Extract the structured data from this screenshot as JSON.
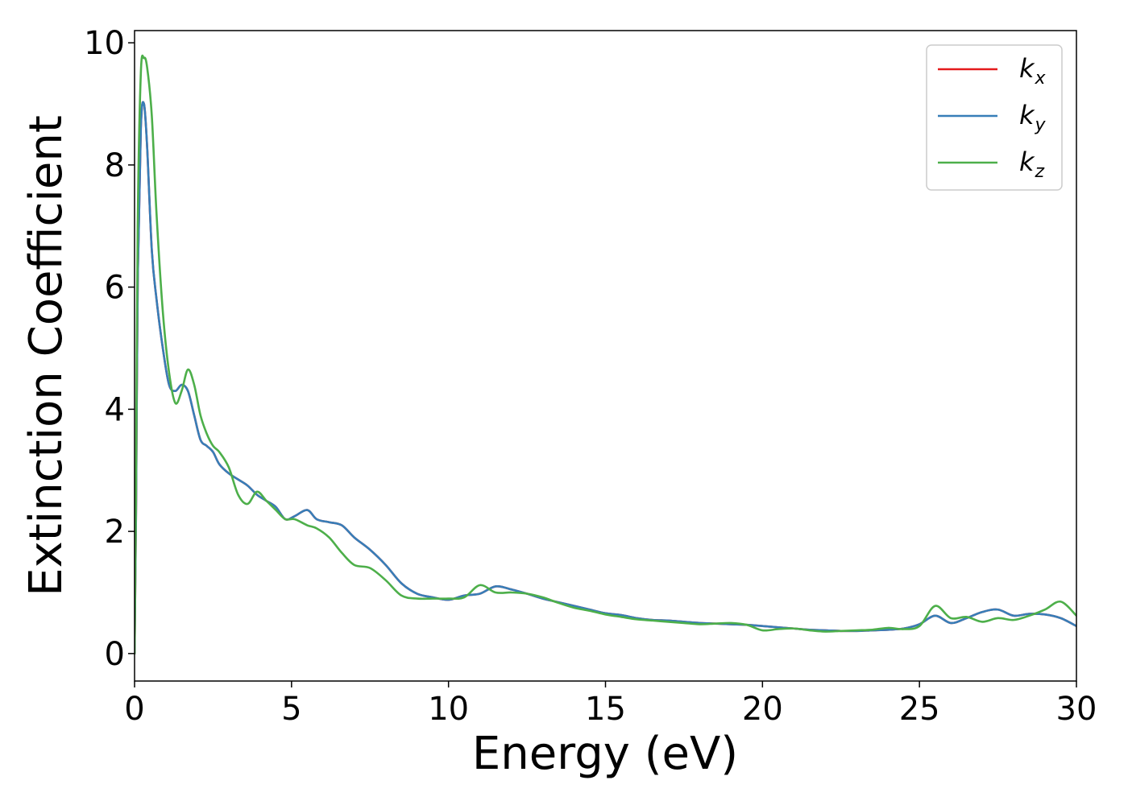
{
  "chart_data": {
    "type": "line",
    "title": "",
    "xlabel": "Energy (eV)",
    "ylabel": "Extinction Coefficient",
    "xlim": [
      0,
      30
    ],
    "ylim": [
      -0.45,
      10.2
    ],
    "xticks": [
      0,
      5,
      10,
      15,
      20,
      25,
      30
    ],
    "yticks": [
      0,
      2,
      4,
      6,
      8,
      10
    ],
    "grid": false,
    "legend_position": "top-right",
    "series": [
      {
        "name": "k_x",
        "label_base": "k",
        "label_sub": "x",
        "color": "#e41a1c",
        "x": [
          0,
          0.05,
          0.1,
          0.2,
          0.3,
          0.4,
          0.55,
          0.7,
          0.9,
          1.1,
          1.3,
          1.5,
          1.7,
          1.9,
          2.1,
          2.3,
          2.5,
          2.7,
          3.0,
          3.3,
          3.6,
          3.9,
          4.2,
          4.5,
          4.8,
          5.1,
          5.5,
          5.8,
          6.2,
          6.6,
          7.0,
          7.5,
          8.0,
          8.5,
          9.0,
          9.5,
          10.0,
          10.5,
          11.0,
          11.5,
          12.0,
          12.5,
          13.0,
          13.5,
          14.0,
          14.5,
          15.0,
          15.5,
          16.0,
          16.5,
          17.0,
          17.5,
          18.0,
          18.5,
          19.0,
          19.5,
          20.0,
          20.5,
          21.0,
          21.5,
          22.0,
          22.5,
          23.0,
          23.5,
          24.0,
          24.5,
          25.0,
          25.5,
          26.0,
          26.5,
          27.0,
          27.5,
          28.0,
          28.5,
          29.0,
          29.5,
          30.0
        ],
        "y": [
          0,
          2.5,
          6.0,
          8.6,
          9.0,
          8.3,
          6.6,
          5.8,
          5.0,
          4.4,
          4.3,
          4.4,
          4.3,
          3.9,
          3.5,
          3.4,
          3.3,
          3.1,
          2.95,
          2.85,
          2.75,
          2.6,
          2.5,
          2.4,
          2.2,
          2.25,
          2.35,
          2.2,
          2.15,
          2.1,
          1.9,
          1.7,
          1.45,
          1.15,
          0.98,
          0.92,
          0.88,
          0.95,
          0.98,
          1.1,
          1.05,
          0.98,
          0.9,
          0.84,
          0.78,
          0.72,
          0.66,
          0.63,
          0.58,
          0.55,
          0.54,
          0.52,
          0.5,
          0.49,
          0.48,
          0.47,
          0.45,
          0.43,
          0.41,
          0.39,
          0.38,
          0.37,
          0.37,
          0.38,
          0.39,
          0.41,
          0.48,
          0.62,
          0.5,
          0.58,
          0.68,
          0.72,
          0.62,
          0.65,
          0.64,
          0.58,
          0.45
        ]
      },
      {
        "name": "k_y",
        "label_base": "k",
        "label_sub": "y",
        "color": "#377eb8",
        "x": [
          0,
          0.05,
          0.1,
          0.2,
          0.3,
          0.4,
          0.55,
          0.7,
          0.9,
          1.1,
          1.3,
          1.5,
          1.7,
          1.9,
          2.1,
          2.3,
          2.5,
          2.7,
          3.0,
          3.3,
          3.6,
          3.9,
          4.2,
          4.5,
          4.8,
          5.1,
          5.5,
          5.8,
          6.2,
          6.6,
          7.0,
          7.5,
          8.0,
          8.5,
          9.0,
          9.5,
          10.0,
          10.5,
          11.0,
          11.5,
          12.0,
          12.5,
          13.0,
          13.5,
          14.0,
          14.5,
          15.0,
          15.5,
          16.0,
          16.5,
          17.0,
          17.5,
          18.0,
          18.5,
          19.0,
          19.5,
          20.0,
          20.5,
          21.0,
          21.5,
          22.0,
          22.5,
          23.0,
          23.5,
          24.0,
          24.5,
          25.0,
          25.5,
          26.0,
          26.5,
          27.0,
          27.5,
          28.0,
          28.5,
          29.0,
          29.5,
          30.0
        ],
        "y": [
          0,
          2.5,
          6.0,
          8.6,
          9.0,
          8.3,
          6.6,
          5.8,
          5.0,
          4.4,
          4.3,
          4.4,
          4.3,
          3.9,
          3.5,
          3.4,
          3.3,
          3.1,
          2.95,
          2.85,
          2.75,
          2.6,
          2.5,
          2.4,
          2.2,
          2.25,
          2.35,
          2.2,
          2.15,
          2.1,
          1.9,
          1.7,
          1.45,
          1.15,
          0.98,
          0.92,
          0.88,
          0.95,
          0.98,
          1.1,
          1.05,
          0.98,
          0.9,
          0.84,
          0.78,
          0.72,
          0.66,
          0.63,
          0.58,
          0.55,
          0.54,
          0.52,
          0.5,
          0.49,
          0.48,
          0.47,
          0.45,
          0.43,
          0.41,
          0.39,
          0.38,
          0.37,
          0.37,
          0.38,
          0.39,
          0.41,
          0.48,
          0.62,
          0.5,
          0.58,
          0.68,
          0.72,
          0.62,
          0.65,
          0.64,
          0.58,
          0.45
        ]
      },
      {
        "name": "k_z",
        "label_base": "k",
        "label_sub": "z",
        "color": "#4daf4a",
        "x": [
          0,
          0.05,
          0.1,
          0.2,
          0.3,
          0.4,
          0.55,
          0.7,
          0.9,
          1.1,
          1.3,
          1.5,
          1.7,
          1.9,
          2.1,
          2.3,
          2.5,
          2.7,
          3.0,
          3.3,
          3.6,
          3.9,
          4.2,
          4.5,
          4.8,
          5.1,
          5.5,
          5.8,
          6.2,
          6.6,
          7.0,
          7.5,
          8.0,
          8.5,
          9.0,
          9.5,
          10.0,
          10.5,
          11.0,
          11.5,
          12.0,
          12.5,
          13.0,
          13.5,
          14.0,
          14.5,
          15.0,
          15.5,
          16.0,
          16.5,
          17.0,
          17.5,
          18.0,
          18.5,
          19.0,
          19.5,
          20.0,
          20.5,
          21.0,
          21.5,
          22.0,
          22.5,
          23.0,
          23.5,
          24.0,
          24.5,
          25.0,
          25.5,
          26.0,
          26.5,
          27.0,
          27.5,
          28.0,
          28.5,
          29.0,
          29.5,
          30.0
        ],
        "y": [
          0,
          3.0,
          7.0,
          9.5,
          9.75,
          9.6,
          8.8,
          7.2,
          5.6,
          4.6,
          4.1,
          4.3,
          4.65,
          4.4,
          3.9,
          3.6,
          3.4,
          3.3,
          3.05,
          2.6,
          2.45,
          2.65,
          2.5,
          2.35,
          2.2,
          2.2,
          2.1,
          2.05,
          1.9,
          1.65,
          1.45,
          1.4,
          1.2,
          0.95,
          0.9,
          0.9,
          0.9,
          0.92,
          1.12,
          1.0,
          1.0,
          0.98,
          0.92,
          0.83,
          0.75,
          0.7,
          0.64,
          0.6,
          0.56,
          0.54,
          0.52,
          0.5,
          0.48,
          0.49,
          0.5,
          0.47,
          0.38,
          0.4,
          0.41,
          0.38,
          0.36,
          0.37,
          0.38,
          0.39,
          0.42,
          0.4,
          0.45,
          0.78,
          0.58,
          0.6,
          0.52,
          0.58,
          0.55,
          0.62,
          0.72,
          0.85,
          0.62
        ]
      }
    ]
  }
}
